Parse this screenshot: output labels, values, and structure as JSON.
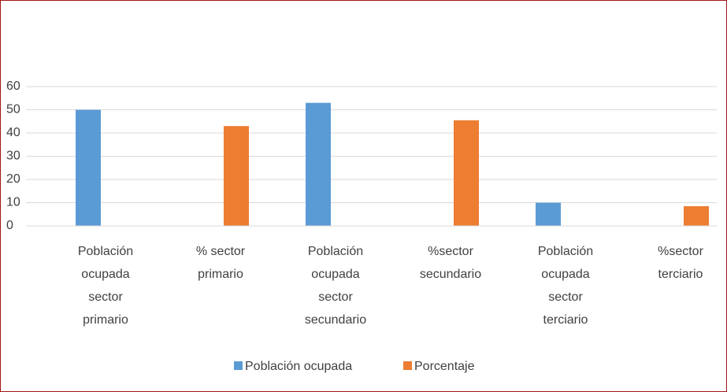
{
  "chart_data": {
    "type": "bar",
    "categories": [
      "Población ocupada sector primario",
      "% sector primario",
      "Población ocupada sector secundario",
      "%sector secundario",
      "Población ocupada sector terciario",
      "%sector terciario"
    ],
    "series": [
      {
        "name": "Población ocupada",
        "color": "#5b9bd5",
        "values": [
          50,
          null,
          53,
          null,
          10,
          null
        ]
      },
      {
        "name": "Porcentaje",
        "color": "#ed7d31",
        "values": [
          null,
          43,
          null,
          45.5,
          null,
          8.5
        ]
      }
    ],
    "ylim": [
      0,
      60
    ],
    "yticks": [
      0,
      10,
      20,
      30,
      40,
      50,
      60
    ],
    "grid": true,
    "legend": "bottom"
  }
}
